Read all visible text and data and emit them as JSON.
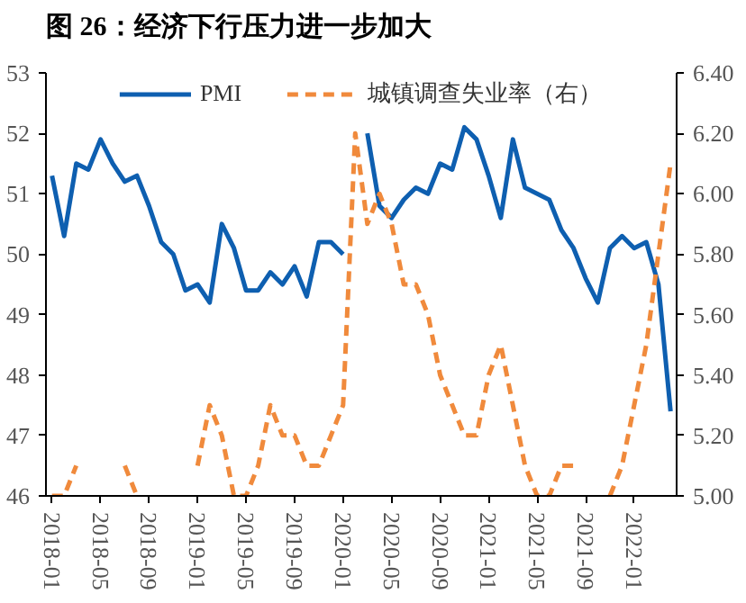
{
  "chart_data": {
    "type": "line",
    "title": "图 26：经济下行压力进一步加大",
    "categories": [
      "2018-01",
      null,
      null,
      null,
      "2018-05",
      null,
      null,
      null,
      "2018-09",
      null,
      null,
      null,
      "2019-01",
      null,
      null,
      null,
      "2019-05",
      null,
      null,
      null,
      "2019-09",
      null,
      null,
      null,
      "2020-01",
      null,
      null,
      null,
      "2020-05",
      null,
      null,
      null,
      "2020-09",
      null,
      null,
      null,
      "2021-01",
      null,
      null,
      null,
      "2021-05",
      null,
      null,
      null,
      "2021-09",
      null,
      null,
      null,
      "2022-01",
      null,
      null,
      null
    ],
    "series": [
      {
        "name": "PMI",
        "color": "#0e5fb0",
        "line_style": "solid",
        "values": [
          51.3,
          50.3,
          51.5,
          51.4,
          51.9,
          51.5,
          51.2,
          51.3,
          50.8,
          50.2,
          50.0,
          49.4,
          49.5,
          49.2,
          50.5,
          50.1,
          49.4,
          49.4,
          49.7,
          49.5,
          49.8,
          49.3,
          50.2,
          50.2,
          50.0,
          null,
          52.0,
          50.8,
          50.6,
          50.9,
          51.1,
          51.0,
          51.5,
          51.4,
          52.1,
          51.9,
          51.3,
          50.6,
          51.9,
          51.1,
          51.0,
          50.9,
          50.4,
          50.1,
          49.6,
          49.2,
          50.1,
          50.3,
          50.1,
          50.2,
          49.5,
          47.4
        ]
      },
      {
        "name": "城镇调查失业率（右）",
        "color": "#f08a3c",
        "line_style": "dashed",
        "axis": "y2",
        "values": [
          5.0,
          5.0,
          5.1,
          null,
          null,
          null,
          5.1,
          5.0,
          null,
          null,
          null,
          null,
          5.1,
          5.3,
          5.2,
          5.0,
          5.0,
          5.1,
          5.3,
          5.2,
          5.2,
          5.1,
          5.1,
          5.2,
          5.3,
          6.2,
          5.9,
          6.0,
          5.9,
          5.7,
          5.7,
          5.6,
          5.4,
          5.3,
          5.2,
          5.2,
          5.4,
          5.5,
          5.3,
          5.1,
          5.0,
          5.0,
          5.1,
          5.1,
          null,
          null,
          5.0,
          5.1,
          5.3,
          5.5,
          5.8,
          6.1
        ]
      }
    ],
    "ylim": [
      46,
      53
    ],
    "yticks": [
      46,
      47,
      48,
      49,
      50,
      51,
      52,
      53
    ],
    "y2lim": [
      5.0,
      6.4
    ],
    "y2ticks": [
      {
        "value": 5.0,
        "label": "5.00"
      },
      {
        "value": 5.2,
        "label": "5.20"
      },
      {
        "value": 5.4,
        "label": "5.40"
      },
      {
        "value": 5.6,
        "label": "5.60"
      },
      {
        "value": 5.8,
        "label": "5.80"
      },
      {
        "value": 6.0,
        "label": "6.00"
      },
      {
        "value": 6.2,
        "label": "6.20"
      },
      {
        "value": 6.4,
        "label": "6.40"
      }
    ],
    "legend": "top",
    "grid": false
  }
}
